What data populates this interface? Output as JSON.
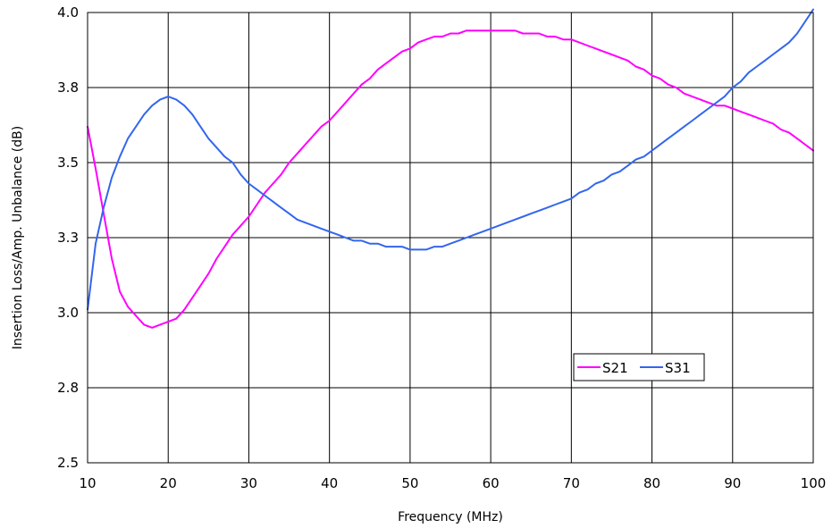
{
  "chart_data": {
    "type": "line",
    "title": "",
    "xlabel": "Frequency (MHz)",
    "ylabel": "Insertion Loss/Amp. Unbalance  (dB)",
    "xlim": [
      10,
      100
    ],
    "ylim": [
      2.5,
      4.0
    ],
    "x_ticks": [
      10,
      20,
      30,
      40,
      50,
      60,
      70,
      80,
      90,
      100
    ],
    "y_ticks": [
      2.5,
      2.75,
      3.0,
      3.25,
      3.5,
      3.75,
      4.0
    ],
    "x_tick_labels": [
      "10",
      "20",
      "30",
      "40",
      "50",
      "60",
      "70",
      "80",
      "90",
      "100"
    ],
    "y_tick_labels": [
      "2.5",
      "2.8",
      "3.0",
      "3.3",
      "3.5",
      "3.8",
      "4.0"
    ],
    "grid": true,
    "legend_position": "bottom-right",
    "x": [
      10,
      11,
      12,
      13,
      14,
      15,
      16,
      17,
      18,
      19,
      20,
      21,
      22,
      23,
      24,
      25,
      26,
      27,
      28,
      29,
      30,
      31,
      32,
      33,
      34,
      35,
      36,
      37,
      38,
      39,
      40,
      41,
      42,
      43,
      44,
      45,
      46,
      47,
      48,
      49,
      50,
      51,
      52,
      53,
      54,
      55,
      56,
      57,
      58,
      59,
      60,
      61,
      62,
      63,
      64,
      65,
      66,
      67,
      68,
      69,
      70,
      71,
      72,
      73,
      74,
      75,
      76,
      77,
      78,
      79,
      80,
      81,
      82,
      83,
      84,
      85,
      86,
      87,
      88,
      89,
      90,
      91,
      92,
      93,
      94,
      95,
      96,
      97,
      98,
      99,
      100
    ],
    "series": [
      {
        "name": "S21",
        "color": "#ff00ff",
        "values": [
          3.62,
          3.48,
          3.33,
          3.18,
          3.07,
          3.02,
          2.99,
          2.96,
          2.95,
          2.96,
          2.97,
          2.98,
          3.01,
          3.05,
          3.09,
          3.13,
          3.18,
          3.22,
          3.26,
          3.29,
          3.32,
          3.36,
          3.4,
          3.43,
          3.46,
          3.5,
          3.53,
          3.56,
          3.59,
          3.62,
          3.64,
          3.67,
          3.7,
          3.73,
          3.76,
          3.78,
          3.81,
          3.83,
          3.85,
          3.87,
          3.88,
          3.9,
          3.91,
          3.92,
          3.92,
          3.93,
          3.93,
          3.94,
          3.94,
          3.94,
          3.94,
          3.94,
          3.94,
          3.94,
          3.93,
          3.93,
          3.93,
          3.92,
          3.92,
          3.91,
          3.91,
          3.9,
          3.89,
          3.88,
          3.87,
          3.86,
          3.85,
          3.84,
          3.82,
          3.81,
          3.79,
          3.78,
          3.76,
          3.75,
          3.73,
          3.72,
          3.71,
          3.7,
          3.69,
          3.69,
          3.68,
          3.67,
          3.66,
          3.65,
          3.64,
          3.63,
          3.61,
          3.6,
          3.58,
          3.56,
          3.54
        ]
      },
      {
        "name": "S31",
        "color": "#3366ee",
        "values": [
          3.01,
          3.23,
          3.35,
          3.45,
          3.52,
          3.58,
          3.62,
          3.66,
          3.69,
          3.71,
          3.72,
          3.71,
          3.69,
          3.66,
          3.62,
          3.58,
          3.55,
          3.52,
          3.5,
          3.46,
          3.43,
          3.41,
          3.39,
          3.37,
          3.35,
          3.33,
          3.31,
          3.3,
          3.29,
          3.28,
          3.27,
          3.26,
          3.25,
          3.24,
          3.24,
          3.23,
          3.23,
          3.22,
          3.22,
          3.22,
          3.21,
          3.21,
          3.21,
          3.22,
          3.22,
          3.23,
          3.24,
          3.25,
          3.26,
          3.27,
          3.28,
          3.29,
          3.3,
          3.31,
          3.32,
          3.33,
          3.34,
          3.35,
          3.36,
          3.37,
          3.38,
          3.4,
          3.41,
          3.43,
          3.44,
          3.46,
          3.47,
          3.49,
          3.51,
          3.52,
          3.54,
          3.56,
          3.58,
          3.6,
          3.62,
          3.64,
          3.66,
          3.68,
          3.7,
          3.72,
          3.75,
          3.77,
          3.8,
          3.82,
          3.84,
          3.86,
          3.88,
          3.9,
          3.93,
          3.97,
          4.01
        ]
      }
    ]
  }
}
